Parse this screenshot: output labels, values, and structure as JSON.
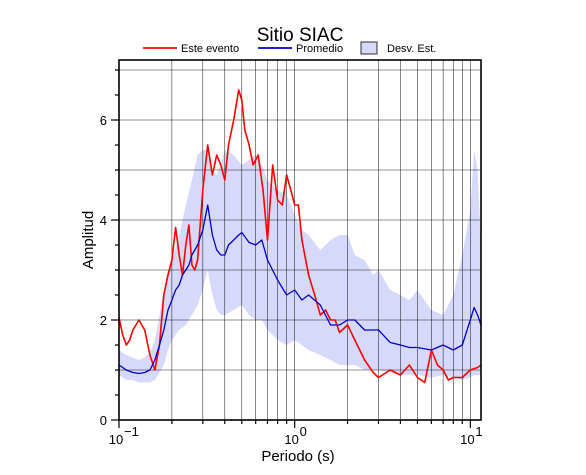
{
  "chart_data": {
    "type": "line",
    "title": "Sitio SIAC",
    "xlabel": "Periodo (s)",
    "ylabel": "Amplitud",
    "xscale": "log",
    "xlim": [
      0.1,
      11.5
    ],
    "ylim": [
      0,
      7.2
    ],
    "grid": true,
    "legend_position": "top",
    "x_ticks": [
      {
        "value": 0.1,
        "base": "10",
        "exp": "−1"
      },
      {
        "value": 1,
        "base": "10",
        "exp": "0"
      },
      {
        "value": 10,
        "base": "10",
        "exp": "1"
      }
    ],
    "y_ticks": [
      0,
      2,
      4,
      6
    ],
    "legend": [
      {
        "label": "Este evento",
        "type": "line",
        "color": "#ff0000"
      },
      {
        "label": "Promedio",
        "type": "line",
        "color": "#0000cc"
      },
      {
        "label": "Desv. Est.",
        "type": "band",
        "color": "#d7d9fa"
      }
    ],
    "series": [
      {
        "name": "Este evento",
        "color": "#ff0000",
        "x": [
          0.1,
          0.105,
          0.11,
          0.115,
          0.12,
          0.13,
          0.14,
          0.15,
          0.16,
          0.17,
          0.18,
          0.19,
          0.2,
          0.21,
          0.22,
          0.23,
          0.24,
          0.25,
          0.26,
          0.27,
          0.28,
          0.3,
          0.32,
          0.34,
          0.36,
          0.38,
          0.4,
          0.42,
          0.45,
          0.48,
          0.5,
          0.52,
          0.55,
          0.58,
          0.62,
          0.66,
          0.7,
          0.75,
          0.8,
          0.85,
          0.9,
          0.95,
          1.0,
          1.05,
          1.1,
          1.2,
          1.3,
          1.4,
          1.5,
          1.6,
          1.7,
          1.8,
          2.0,
          2.2,
          2.5,
          2.8,
          3.0,
          3.5,
          4.0,
          4.5,
          5.0,
          5.5,
          6.0,
          6.5,
          7.0,
          7.5,
          8.0,
          9.0,
          10.0,
          11.0,
          11.5
        ],
        "values": [
          2.05,
          1.7,
          1.5,
          1.6,
          1.8,
          2.0,
          1.8,
          1.3,
          1.0,
          1.5,
          2.5,
          2.9,
          3.2,
          3.85,
          3.3,
          2.9,
          3.5,
          3.9,
          3.1,
          3.0,
          3.2,
          4.6,
          5.5,
          4.9,
          5.3,
          5.1,
          4.8,
          5.5,
          6.0,
          6.6,
          6.4,
          5.8,
          5.5,
          5.1,
          5.3,
          4.6,
          3.6,
          5.1,
          4.4,
          4.3,
          4.9,
          4.6,
          4.3,
          4.3,
          3.6,
          2.9,
          2.5,
          2.1,
          2.2,
          2.0,
          2.0,
          1.75,
          1.9,
          1.6,
          1.2,
          0.95,
          0.85,
          1.0,
          0.9,
          1.1,
          0.85,
          0.75,
          1.4,
          1.1,
          1.0,
          0.8,
          0.85,
          0.85,
          1.0,
          1.05,
          1.1
        ]
      },
      {
        "name": "Promedio",
        "color": "#0000cc",
        "x": [
          0.1,
          0.11,
          0.12,
          0.13,
          0.14,
          0.15,
          0.16,
          0.17,
          0.18,
          0.19,
          0.2,
          0.21,
          0.22,
          0.23,
          0.24,
          0.25,
          0.26,
          0.27,
          0.28,
          0.3,
          0.32,
          0.34,
          0.36,
          0.38,
          0.4,
          0.42,
          0.45,
          0.48,
          0.5,
          0.55,
          0.6,
          0.65,
          0.7,
          0.8,
          0.9,
          1.0,
          1.1,
          1.2,
          1.4,
          1.6,
          1.8,
          2.0,
          2.2,
          2.5,
          2.8,
          3.0,
          3.5,
          4.0,
          4.5,
          5.0,
          6.0,
          7.0,
          8.0,
          9.0,
          10.0,
          10.5,
          11.0,
          11.5
        ],
        "values": [
          1.1,
          1.0,
          0.95,
          0.93,
          0.95,
          1.0,
          1.2,
          1.5,
          1.8,
          2.2,
          2.4,
          2.6,
          2.7,
          2.9,
          3.0,
          3.1,
          3.3,
          3.4,
          3.5,
          3.8,
          4.3,
          3.7,
          3.4,
          3.3,
          3.3,
          3.5,
          3.6,
          3.7,
          3.75,
          3.55,
          3.5,
          3.6,
          3.2,
          2.8,
          2.5,
          2.6,
          2.4,
          2.5,
          2.3,
          1.9,
          1.9,
          2.0,
          2.0,
          1.8,
          1.8,
          1.8,
          1.55,
          1.5,
          1.45,
          1.45,
          1.4,
          1.5,
          1.4,
          1.5,
          2.0,
          2.25,
          2.1,
          1.9
        ]
      }
    ],
    "std_band": {
      "name": "Desv. Est.",
      "color": "#d7d9fa",
      "x": [
        0.1,
        0.11,
        0.12,
        0.13,
        0.14,
        0.15,
        0.16,
        0.17,
        0.18,
        0.19,
        0.2,
        0.22,
        0.24,
        0.26,
        0.28,
        0.3,
        0.32,
        0.34,
        0.36,
        0.38,
        0.4,
        0.45,
        0.5,
        0.55,
        0.6,
        0.65,
        0.7,
        0.8,
        0.9,
        1.0,
        1.1,
        1.2,
        1.4,
        1.6,
        1.8,
        2.0,
        2.2,
        2.5,
        2.8,
        3.0,
        3.5,
        4.0,
        4.5,
        5.0,
        6.0,
        7.0,
        8.0,
        9.0,
        10.0,
        10.5,
        11.0,
        11.5
      ],
      "lower": [
        0.9,
        0.8,
        0.8,
        0.75,
        0.75,
        0.75,
        0.8,
        0.95,
        1.1,
        1.4,
        1.6,
        1.8,
        1.9,
        2.1,
        2.3,
        2.6,
        3.0,
        2.5,
        2.2,
        2.1,
        2.1,
        2.2,
        2.3,
        2.1,
        2.0,
        2.0,
        1.8,
        1.6,
        1.5,
        1.6,
        1.5,
        1.4,
        1.3,
        1.2,
        1.1,
        1.1,
        1.1,
        1.0,
        1.0,
        1.0,
        0.95,
        0.9,
        0.9,
        0.9,
        0.85,
        0.9,
        0.85,
        0.8,
        0.85,
        0.9,
        0.9,
        0.9
      ],
      "upper": [
        1.4,
        1.3,
        1.25,
        1.2,
        1.25,
        1.35,
        1.6,
        2.1,
        2.6,
        3.0,
        3.2,
        3.7,
        4.3,
        4.8,
        5.3,
        5.4,
        5.4,
        5.0,
        4.9,
        5.1,
        5.4,
        5.3,
        5.1,
        5.2,
        5.3,
        5.1,
        4.8,
        4.6,
        4.5,
        4.1,
        3.8,
        3.7,
        3.4,
        3.6,
        3.7,
        3.7,
        3.3,
        3.2,
        2.9,
        3.0,
        2.6,
        2.5,
        2.4,
        2.6,
        2.2,
        2.1,
        2.5,
        3.3,
        4.2,
        5.4,
        5.0,
        3.5
      ]
    }
  }
}
